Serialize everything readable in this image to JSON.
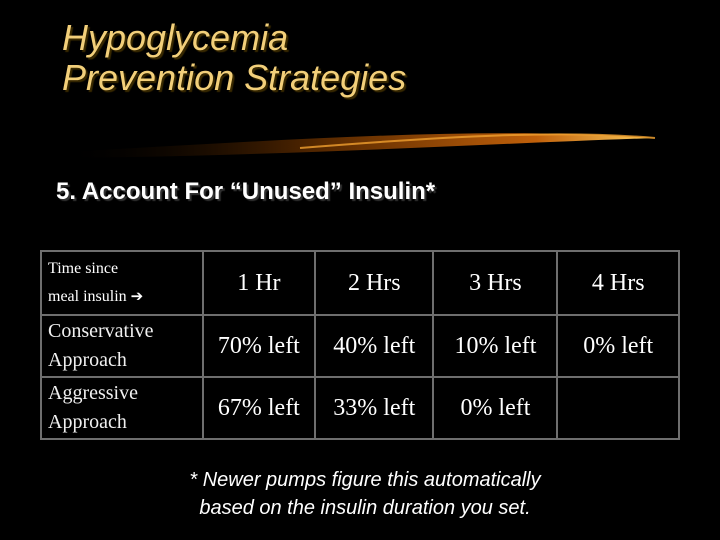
{
  "title": {
    "line1": "Hypoglycemia",
    "line2": "Prevention Strategies"
  },
  "subtitle": "5. Account For “Unused” Insulin*",
  "table": {
    "header": {
      "label_line1": "Time since",
      "label_line2": "meal insulin",
      "arrow": "➔",
      "cols": [
        "1 Hr",
        "2 Hrs",
        "3 Hrs",
        "4 Hrs"
      ]
    },
    "rows": [
      {
        "label_line1": "Conservative",
        "label_line2": "Approach",
        "values": [
          "70% left",
          "40% left",
          "10% left",
          "0% left"
        ]
      },
      {
        "label_line1": "Aggressive",
        "label_line2": "Approach",
        "values": [
          "67% left",
          "33% left",
          "0% left",
          ""
        ]
      }
    ]
  },
  "footnote": {
    "line1": "* Newer pumps figure this automatically",
    "line2": "based on the insulin duration you set."
  },
  "colors": {
    "background": "#000000",
    "title": "#f2cf7a",
    "swoosh": "#e07a10",
    "grid": "#6e6e6e"
  }
}
